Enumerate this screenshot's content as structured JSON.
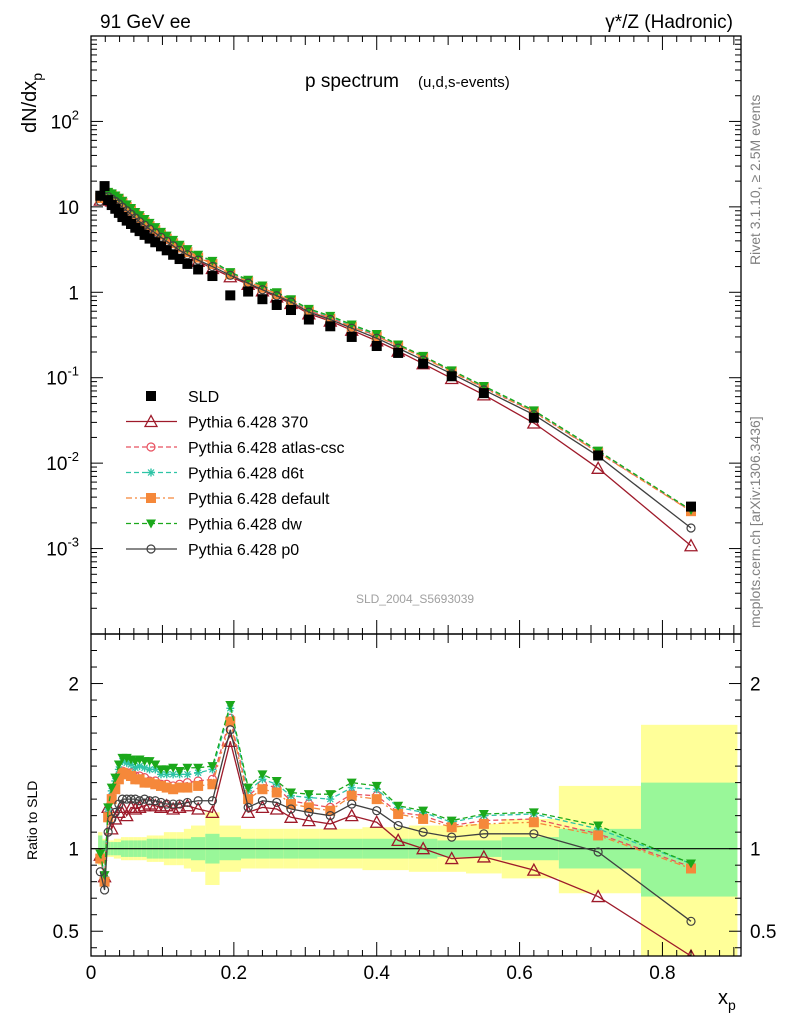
{
  "header": {
    "left_label": "91 GeV ee",
    "right_label": "γ*/Z (Hadronic)",
    "side_rivet": "Rivet 3.1.10, ≥ 2.5M events",
    "side_mcplots": "mcplots.cern.ch [arXiv:1306.3436]",
    "watermark": "SLD_2004_S5693039"
  },
  "chart_data": [
    {
      "type": "scatter",
      "title": "p spectrum",
      "subtitle": "(u,d,s-events)",
      "ylabel": "dN/dx_p",
      "xlabel": "x_p",
      "y_scale": "log",
      "xlim": [
        0,
        0.91
      ],
      "ylim": [
        0.0001,
        1000
      ],
      "y_ticklabels": [
        "10^-3",
        "10^-2",
        "10^-1",
        "1",
        "10",
        "10^2"
      ],
      "x_ticklabels": [
        "0",
        "0.2",
        "0.4",
        "0.6",
        "0.8"
      ],
      "legend_position": "lower-left",
      "x": [
        0.013,
        0.019,
        0.024,
        0.029,
        0.034,
        0.039,
        0.044,
        0.05,
        0.056,
        0.062,
        0.068,
        0.075,
        0.082,
        0.09,
        0.098,
        0.106,
        0.115,
        0.124,
        0.135,
        0.15,
        0.17,
        0.195,
        0.22,
        0.24,
        0.26,
        0.28,
        0.305,
        0.335,
        0.365,
        0.4,
        0.43,
        0.465,
        0.505,
        0.55,
        0.62,
        0.71,
        0.84
      ],
      "series": [
        {
          "name": "SLD",
          "color": "#000000",
          "marker": "square-filled",
          "line": "none",
          "values": [
            13.5,
            17.5,
            12.0,
            10.5,
            9.5,
            8.5,
            7.6,
            6.9,
            6.3,
            5.7,
            5.2,
            4.7,
            4.25,
            3.85,
            3.45,
            3.1,
            2.75,
            2.45,
            2.15,
            1.85,
            1.55,
            0.92,
            1.02,
            0.83,
            0.71,
            0.62,
            0.48,
            0.4,
            0.3,
            0.235,
            0.195,
            0.146,
            0.104,
            0.066,
            0.034,
            0.0123,
            0.0031
          ]
        },
        {
          "name": "Pythia 6.428 370",
          "color": "#9e1a2a",
          "marker": "triangle-open",
          "line": "solid",
          "values": [
            12.0,
            13.0,
            12.2,
            11.7,
            11.0,
            10.3,
            9.5,
            8.6,
            7.9,
            7.1,
            6.5,
            5.9,
            5.35,
            4.85,
            4.3,
            3.9,
            3.4,
            3.05,
            2.7,
            2.3,
            1.9,
            1.52,
            1.24,
            1.04,
            0.88,
            0.74,
            0.56,
            0.46,
            0.36,
            0.27,
            0.205,
            0.146,
            0.098,
            0.063,
            0.0295,
            0.0087,
            0.00108
          ]
        },
        {
          "name": "Pythia 6.428 atlas-csc",
          "color": "#e8505f",
          "marker": "circle-open",
          "line": "dashed",
          "values": [
            12.8,
            14.2,
            14.5,
            13.8,
            13.0,
            12.2,
            11.2,
            10.1,
            9.2,
            8.2,
            7.5,
            6.7,
            6.0,
            5.4,
            4.8,
            4.3,
            3.8,
            3.4,
            3.0,
            2.6,
            2.2,
            1.65,
            1.35,
            1.15,
            0.97,
            0.8,
            0.61,
            0.5,
            0.4,
            0.31,
            0.238,
            0.175,
            0.119,
            0.077,
            0.04,
            0.0134,
            0.00276
          ]
        },
        {
          "name": "Pythia 6.428 d6t",
          "color": "#2ec4a6",
          "marker": "star",
          "line": "dashed",
          "values": [
            13.0,
            14.6,
            14.9,
            14.2,
            13.4,
            12.6,
            11.6,
            10.5,
            9.5,
            8.5,
            7.8,
            7.0,
            6.3,
            5.7,
            5.0,
            4.5,
            4.0,
            3.55,
            3.12,
            2.7,
            2.3,
            1.7,
            1.38,
            1.18,
            0.99,
            0.82,
            0.63,
            0.52,
            0.41,
            0.32,
            0.243,
            0.178,
            0.121,
            0.079,
            0.041,
            0.0138,
            0.00281
          ]
        },
        {
          "name": "Pythia 6.428 default",
          "color": "#f5883a",
          "marker": "square-filled",
          "line": "dashdot",
          "values": [
            12.7,
            14.0,
            14.3,
            13.7,
            12.9,
            12.1,
            11.1,
            10.0,
            9.1,
            8.1,
            7.4,
            6.6,
            5.95,
            5.35,
            4.75,
            4.25,
            3.75,
            3.35,
            2.95,
            2.55,
            2.15,
            1.63,
            1.33,
            1.13,
            0.95,
            0.79,
            0.6,
            0.49,
            0.395,
            0.305,
            0.235,
            0.172,
            0.117,
            0.076,
            0.0395,
            0.0133,
            0.00274
          ]
        },
        {
          "name": "Pythia 6.428 dw",
          "color": "#1ba81b",
          "marker": "triangle-down-filled",
          "line": "dashed",
          "values": [
            13.1,
            14.7,
            15.0,
            14.4,
            13.6,
            12.8,
            11.8,
            10.7,
            9.7,
            8.7,
            8.0,
            7.2,
            6.5,
            5.8,
            5.1,
            4.6,
            4.1,
            3.6,
            3.2,
            2.75,
            2.33,
            1.72,
            1.4,
            1.2,
            1.0,
            0.83,
            0.64,
            0.53,
            0.42,
            0.325,
            0.245,
            0.18,
            0.122,
            0.08,
            0.0415,
            0.014,
            0.00283
          ]
        },
        {
          "name": "Pythia 6.428 p0",
          "color": "#404040",
          "marker": "circle-open",
          "line": "solid",
          "values": [
            11.6,
            13.1,
            13.2,
            12.4,
            11.6,
            10.8,
            9.9,
            9.0,
            8.2,
            7.4,
            6.7,
            6.1,
            5.5,
            4.95,
            4.4,
            3.95,
            3.5,
            3.1,
            2.75,
            2.38,
            2.0,
            1.58,
            1.28,
            1.07,
            0.91,
            0.77,
            0.585,
            0.48,
            0.38,
            0.29,
            0.222,
            0.161,
            0.111,
            0.072,
            0.0369,
            0.0121,
            0.00174
          ]
        }
      ]
    },
    {
      "type": "line",
      "title": "",
      "ylabel": "Ratio to SLD",
      "xlabel": "x_p",
      "y_scale": "linear",
      "xlim": [
        0,
        0.91
      ],
      "ylim": [
        0.35,
        2.3
      ],
      "y_ticklabels": [
        "0.5",
        "1",
        "2"
      ],
      "band_edges": [
        0.01,
        0.016,
        0.022,
        0.027,
        0.032,
        0.037,
        0.042,
        0.047,
        0.053,
        0.059,
        0.065,
        0.071,
        0.078,
        0.086,
        0.094,
        0.102,
        0.11,
        0.12,
        0.13,
        0.14,
        0.16,
        0.18,
        0.21,
        0.23,
        0.25,
        0.27,
        0.29,
        0.32,
        0.35,
        0.38,
        0.42,
        0.445,
        0.485,
        0.525,
        0.575,
        0.655,
        0.77,
        0.905
      ],
      "band_inner": [
        0.92,
        0.95,
        0.96,
        0.96,
        0.96,
        0.96,
        0.95,
        0.95,
        0.95,
        0.95,
        0.95,
        0.95,
        0.94,
        0.94,
        0.94,
        0.94,
        0.94,
        0.94,
        0.94,
        0.93,
        0.91,
        0.93,
        0.94,
        0.94,
        0.94,
        0.94,
        0.94,
        0.94,
        0.94,
        0.94,
        0.94,
        0.94,
        0.95,
        0.95,
        0.93,
        0.88,
        0.71
      ],
      "band_inner_upper": [
        1.08,
        1.05,
        1.04,
        1.04,
        1.04,
        1.04,
        1.05,
        1.05,
        1.05,
        1.05,
        1.05,
        1.05,
        1.06,
        1.06,
        1.06,
        1.06,
        1.06,
        1.06,
        1.06,
        1.07,
        1.09,
        1.07,
        1.06,
        1.06,
        1.06,
        1.06,
        1.06,
        1.06,
        1.06,
        1.06,
        1.06,
        1.06,
        1.05,
        1.05,
        1.07,
        1.12,
        1.4
      ],
      "band_outer": [
        0.9,
        0.94,
        0.95,
        0.95,
        0.94,
        0.94,
        0.93,
        0.93,
        0.93,
        0.93,
        0.93,
        0.93,
        0.92,
        0.92,
        0.92,
        0.9,
        0.9,
        0.9,
        0.88,
        0.86,
        0.78,
        0.86,
        0.88,
        0.88,
        0.88,
        0.88,
        0.88,
        0.88,
        0.88,
        0.87,
        0.87,
        0.86,
        0.86,
        0.85,
        0.82,
        0.73,
        0.34
      ],
      "band_outer_upper": [
        1.1,
        1.06,
        1.05,
        1.05,
        1.06,
        1.06,
        1.07,
        1.07,
        1.07,
        1.07,
        1.07,
        1.07,
        1.08,
        1.08,
        1.08,
        1.1,
        1.1,
        1.1,
        1.12,
        1.14,
        1.22,
        1.14,
        1.12,
        1.12,
        1.12,
        1.12,
        1.12,
        1.12,
        1.12,
        1.13,
        1.13,
        1.14,
        1.14,
        1.15,
        1.18,
        1.38,
        1.75
      ],
      "band_colors": {
        "inner": "#99f799",
        "outer": "#ffff99"
      },
      "ratio_series": [
        {
          "name": "Pythia 6.428 370",
          "color": "#9e1a2a",
          "values": [
            0.96,
            0.83,
            1.25,
            1.12,
            1.18,
            1.22,
            1.25,
            1.2,
            1.25,
            1.24,
            1.25,
            1.26,
            1.27,
            1.26,
            1.25,
            1.26,
            1.24,
            1.25,
            1.26,
            1.24,
            1.22,
            1.65,
            1.22,
            1.25,
            1.24,
            1.19,
            1.17,
            1.15,
            1.2,
            1.16,
            1.05,
            1.0,
            0.94,
            0.95,
            0.87,
            0.71,
            0.35
          ]
        },
        {
          "name": "Pythia 6.428 atlas-csc",
          "color": "#e8505f",
          "values": [
            0.95,
            0.81,
            1.21,
            1.31,
            1.37,
            1.44,
            1.47,
            1.46,
            1.46,
            1.44,
            1.44,
            1.43,
            1.41,
            1.41,
            1.39,
            1.39,
            1.38,
            1.39,
            1.4,
            1.41,
            1.42,
            1.79,
            1.32,
            1.39,
            1.37,
            1.29,
            1.27,
            1.25,
            1.33,
            1.32,
            1.22,
            1.2,
            1.14,
            1.17,
            1.18,
            1.09,
            0.89
          ]
        },
        {
          "name": "Pythia 6.428 d6t",
          "color": "#2ec4a6",
          "values": [
            0.96,
            0.83,
            1.24,
            1.35,
            1.41,
            1.48,
            1.53,
            1.52,
            1.51,
            1.49,
            1.5,
            1.49,
            1.48,
            1.48,
            1.45,
            1.45,
            1.45,
            1.45,
            1.45,
            1.46,
            1.48,
            1.85,
            1.35,
            1.42,
            1.39,
            1.32,
            1.31,
            1.3,
            1.37,
            1.36,
            1.25,
            1.22,
            1.16,
            1.2,
            1.21,
            1.12,
            0.91
          ]
        },
        {
          "name": "Pythia 6.428 default",
          "color": "#f5883a",
          "values": [
            0.94,
            0.8,
            1.19,
            1.3,
            1.36,
            1.42,
            1.46,
            1.45,
            1.44,
            1.42,
            1.42,
            1.4,
            1.4,
            1.39,
            1.38,
            1.37,
            1.36,
            1.37,
            1.37,
            1.38,
            1.39,
            1.77,
            1.3,
            1.36,
            1.34,
            1.27,
            1.25,
            1.23,
            1.32,
            1.3,
            1.21,
            1.18,
            1.13,
            1.15,
            1.16,
            1.08,
            0.88
          ]
        },
        {
          "name": "Pythia 6.428 dw",
          "color": "#1ba81b",
          "values": [
            0.97,
            0.84,
            1.25,
            1.37,
            1.43,
            1.51,
            1.55,
            1.55,
            1.54,
            1.53,
            1.54,
            1.53,
            1.53,
            1.51,
            1.48,
            1.48,
            1.49,
            1.47,
            1.49,
            1.49,
            1.5,
            1.87,
            1.37,
            1.45,
            1.41,
            1.34,
            1.33,
            1.33,
            1.4,
            1.38,
            1.26,
            1.23,
            1.17,
            1.21,
            1.22,
            1.14,
            0.91
          ]
        },
        {
          "name": "Pythia 6.428 p0",
          "color": "#404040",
          "values": [
            0.86,
            0.75,
            1.1,
            1.18,
            1.22,
            1.27,
            1.3,
            1.3,
            1.3,
            1.3,
            1.29,
            1.3,
            1.29,
            1.29,
            1.28,
            1.27,
            1.27,
            1.27,
            1.28,
            1.29,
            1.29,
            1.72,
            1.25,
            1.29,
            1.28,
            1.24,
            1.22,
            1.2,
            1.27,
            1.23,
            1.14,
            1.1,
            1.07,
            1.09,
            1.09,
            0.98,
            0.56
          ]
        }
      ]
    }
  ]
}
